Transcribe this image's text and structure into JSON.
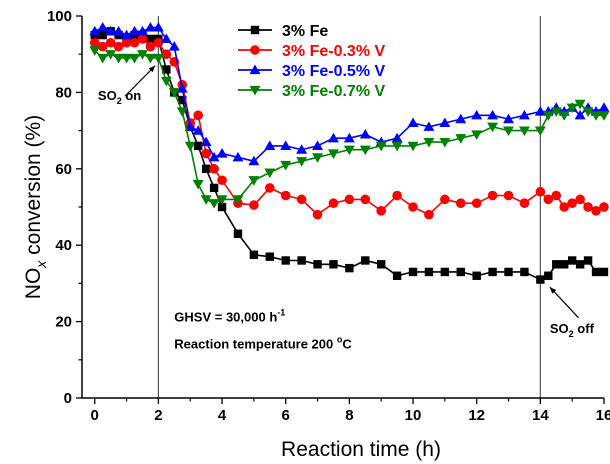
{
  "chart_data": {
    "type": "line",
    "xlabel": "Reaction time (h)",
    "ylabel_parts": {
      "main": "NO",
      "sub": "x",
      "rest": " conversion (%)"
    },
    "xlim": [
      -0.4,
      16
    ],
    "ylim": [
      0,
      100
    ],
    "xticks": [
      0,
      2,
      4,
      6,
      8,
      10,
      12,
      14,
      16
    ],
    "yticks": [
      0,
      20,
      40,
      60,
      80,
      100
    ],
    "vlines": [
      2,
      14
    ],
    "legend_position": "top-center",
    "series": [
      {
        "name": "3% Fe",
        "color": "#000000",
        "marker": "square",
        "x": [
          0,
          0.25,
          0.5,
          0.75,
          1,
          1.25,
          1.5,
          1.75,
          2,
          2.25,
          2.5,
          2.75,
          3,
          3.25,
          3.5,
          3.75,
          4,
          4.5,
          5,
          5.5,
          6,
          6.5,
          7,
          7.5,
          8,
          8.5,
          9,
          9.5,
          10,
          10.5,
          11,
          11.5,
          12,
          12.5,
          13,
          13.5,
          14,
          14.25,
          14.5,
          14.75,
          15,
          15.25,
          15.5,
          15.75,
          16
        ],
        "y": [
          95,
          95,
          96,
          95,
          94,
          95,
          95,
          94,
          94,
          86,
          80,
          78,
          71,
          66,
          60,
          55,
          50,
          43,
          37.5,
          37,
          36,
          36,
          35,
          35,
          34,
          36,
          35,
          32,
          33,
          33,
          33,
          33,
          32,
          33,
          33,
          33,
          31,
          32,
          35,
          35,
          36,
          35,
          36,
          33,
          33
        ]
      },
      {
        "name": "3% Fe-0.3% V",
        "color": "#ff0000",
        "marker": "circle",
        "x": [
          0,
          0.25,
          0.5,
          0.75,
          1,
          1.25,
          1.5,
          1.75,
          2,
          2.25,
          2.5,
          2.75,
          3,
          3.25,
          3.5,
          3.75,
          4,
          4.5,
          5,
          5.5,
          6,
          6.5,
          7,
          7.5,
          8,
          8.5,
          9,
          9.5,
          10,
          10.5,
          11,
          11.5,
          12,
          12.5,
          13,
          13.5,
          14,
          14.25,
          14.5,
          14.75,
          15,
          15.25,
          15.5,
          15.75,
          16
        ],
        "y": [
          93,
          92,
          93,
          92,
          93,
          93,
          94,
          92,
          93,
          90,
          88,
          82,
          72,
          74,
          64,
          60,
          57,
          51,
          50.5,
          55,
          53,
          52,
          48,
          51,
          52,
          52,
          49,
          53,
          50,
          48,
          52,
          51,
          51,
          53,
          53,
          51,
          54,
          52,
          53,
          50,
          51,
          52,
          50,
          49,
          50
        ]
      },
      {
        "name": "3% Fe-0.5% V",
        "color": "#0000ff",
        "marker": "triangle-up",
        "x": [
          0,
          0.25,
          0.5,
          0.75,
          1,
          1.25,
          1.5,
          1.75,
          2,
          2.25,
          2.5,
          2.75,
          3,
          3.25,
          3.5,
          3.75,
          4,
          4.5,
          5,
          5.5,
          6,
          6.5,
          7,
          7.5,
          8,
          8.5,
          9,
          9.5,
          10,
          10.5,
          11,
          11.5,
          12,
          12.5,
          13,
          13.5,
          14,
          14.25,
          14.5,
          14.75,
          15,
          15.25,
          15.5,
          15.75,
          16
        ],
        "y": [
          96,
          97,
          96,
          96,
          95,
          96,
          96,
          97,
          97,
          94,
          92,
          81,
          71,
          70,
          67,
          63,
          64,
          63,
          62,
          66,
          66,
          65,
          66,
          68,
          68,
          69,
          67,
          68,
          72,
          71,
          72,
          73,
          74,
          74,
          73,
          74,
          75,
          75,
          76,
          75,
          76,
          74,
          76,
          75,
          76
        ]
      },
      {
        "name": "3% Fe-0.7% V",
        "color": "#008000",
        "marker": "triangle-down",
        "x": [
          0,
          0.25,
          0.5,
          0.75,
          1,
          1.25,
          1.5,
          1.75,
          2,
          2.25,
          2.5,
          2.75,
          3,
          3.25,
          3.5,
          3.75,
          4,
          4.5,
          5,
          5.5,
          6,
          6.5,
          7,
          7.5,
          8,
          8.5,
          9,
          9.5,
          10,
          10.5,
          11,
          11.5,
          12,
          12.5,
          13,
          13.5,
          14,
          14.25,
          14.5,
          14.75,
          15,
          15.25,
          15.5,
          15.75,
          16
        ],
        "y": [
          91,
          89,
          90,
          89,
          89,
          89,
          90,
          89,
          89,
          83,
          80,
          75,
          66,
          56,
          52,
          51,
          52,
          52,
          57,
          59,
          61,
          62,
          63,
          64,
          65,
          65,
          66,
          66,
          66,
          67,
          67,
          68,
          69,
          71,
          70,
          70,
          70,
          74,
          75,
          74,
          76,
          77,
          75,
          74,
          74
        ]
      }
    ],
    "annotations": [
      {
        "id": "so2_on",
        "parts": [
          "SO",
          "2",
          " on"
        ],
        "x": 0.1,
        "y": 78,
        "arrow_from": [
          0.95,
          79
        ],
        "arrow_to": [
          1.9,
          87
        ]
      },
      {
        "id": "so2_off",
        "parts": [
          "SO",
          "2",
          " off"
        ],
        "x": 14.3,
        "y": 17,
        "arrow_from": [
          15.2,
          21
        ],
        "arrow_to": [
          14.3,
          29
        ]
      },
      {
        "id": "ghsv",
        "parts": [
          "GHSV = 30,000 h",
          "-1",
          ""
        ],
        "x": 2.5,
        "y": 20
      },
      {
        "id": "temp",
        "parts": [
          "Reaction temperature 200 ",
          "o",
          "C"
        ],
        "x": 2.5,
        "y": 13
      }
    ]
  }
}
